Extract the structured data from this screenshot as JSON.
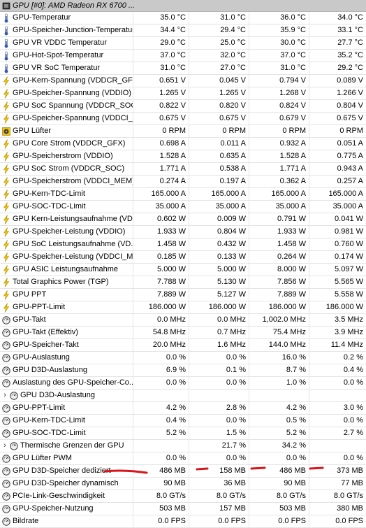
{
  "header": {
    "title": "GPU [#0]: AMD Radeon RX 6700 ..."
  },
  "accent": {
    "annotation_red": "#d9141b",
    "header_bg": "#c9c9c9"
  },
  "rows": [
    {
      "icon": "thermometer-icon",
      "label": "GPU-Temperatur",
      "values": [
        "35.0 °C",
        "31.0 °C",
        "36.0 °C",
        "34.0 °C"
      ]
    },
    {
      "icon": "thermometer-icon",
      "label": "GPU-Speicher-Junction-Temperatur",
      "values": [
        "34.4 °C",
        "29.4 °C",
        "35.9 °C",
        "33.1 °C"
      ]
    },
    {
      "icon": "thermometer-icon",
      "label": "GPU VR VDDC Temperatur",
      "values": [
        "29.0 °C",
        "25.0 °C",
        "30.0 °C",
        "27.7 °C"
      ]
    },
    {
      "icon": "thermometer-icon",
      "label": "GPU-Hot-Spot-Temperatur",
      "values": [
        "37.0 °C",
        "32.0 °C",
        "37.0 °C",
        "35.2 °C"
      ]
    },
    {
      "icon": "thermometer-icon",
      "label": "GPU VR SoC Temperatur",
      "values": [
        "31.0 °C",
        "27.0 °C",
        "31.0 °C",
        "29.2 °C"
      ]
    },
    {
      "icon": "lightning-icon",
      "label": "GPU-Kern-Spannung (VDDCR_GFX)",
      "values": [
        "0.651 V",
        "0.045 V",
        "0.794 V",
        "0.089 V"
      ]
    },
    {
      "icon": "lightning-icon",
      "label": "GPU-Speicher-Spannung (VDDIO)",
      "values": [
        "1.265 V",
        "1.265 V",
        "1.268 V",
        "1.266 V"
      ]
    },
    {
      "icon": "lightning-icon",
      "label": "GPU SoC Spannung (VDDCR_SOC)",
      "values": [
        "0.822 V",
        "0.820 V",
        "0.824 V",
        "0.804 V"
      ]
    },
    {
      "icon": "lightning-icon",
      "label": "GPU-Speicher-Spannung (VDDCI_...",
      "values": [
        "0.675 V",
        "0.675 V",
        "0.679 V",
        "0.675 V"
      ]
    },
    {
      "icon": "fan-icon",
      "label": "GPU Lüfter",
      "values": [
        "0 RPM",
        "0 RPM",
        "0 RPM",
        "0 RPM"
      ]
    },
    {
      "icon": "lightning-icon",
      "label": "GPU Core Strom (VDDCR_GFX)",
      "values": [
        "0.698 A",
        "0.011 A",
        "0.932 A",
        "0.051 A"
      ]
    },
    {
      "icon": "lightning-icon",
      "label": "GPU-Speicherstrom (VDDIO)",
      "values": [
        "1.528 A",
        "0.635 A",
        "1.528 A",
        "0.775 A"
      ]
    },
    {
      "icon": "lightning-icon",
      "label": "GPU SoC Strom (VDDCR_SOC)",
      "values": [
        "1.771 A",
        "0.538 A",
        "1.771 A",
        "0.943 A"
      ]
    },
    {
      "icon": "lightning-icon",
      "label": "GPU-Speicherstrom (VDDCI_MEM)",
      "values": [
        "0.274 A",
        "0.197 A",
        "0.362 A",
        "0.257 A"
      ]
    },
    {
      "icon": "lightning-icon",
      "label": "GPU-Kern-TDC-Limit",
      "values": [
        "165.000 A",
        "165.000 A",
        "165.000 A",
        "165.000 A"
      ]
    },
    {
      "icon": "lightning-icon",
      "label": "GPU-SOC-TDC-Limit",
      "values": [
        "35.000 A",
        "35.000 A",
        "35.000 A",
        "35.000 A"
      ]
    },
    {
      "icon": "lightning-icon",
      "label": "GPU Kern-Leistungsaufnahme (VD...",
      "values": [
        "0.602 W",
        "0.009 W",
        "0.791 W",
        "0.041 W"
      ]
    },
    {
      "icon": "lightning-icon",
      "label": "GPU-Speicher-Leistung (VDDIO)",
      "values": [
        "1.933 W",
        "0.804 W",
        "1.933 W",
        "0.981 W"
      ]
    },
    {
      "icon": "lightning-icon",
      "label": "GPU SoC Leistungsaufnahme (VD...",
      "values": [
        "1.458 W",
        "0.432 W",
        "1.458 W",
        "0.760 W"
      ]
    },
    {
      "icon": "lightning-icon",
      "label": "GPU-Speicher-Leistung (VDDCI_M...",
      "values": [
        "0.185 W",
        "0.133 W",
        "0.264 W",
        "0.174 W"
      ]
    },
    {
      "icon": "lightning-icon",
      "label": "GPU ASIC Leistungsaufnahme",
      "values": [
        "5.000 W",
        "5.000 W",
        "8.000 W",
        "5.097 W"
      ]
    },
    {
      "icon": "lightning-icon",
      "label": "Total Graphics Power (TGP)",
      "values": [
        "7.788 W",
        "5.130 W",
        "7.856 W",
        "5.565 W"
      ]
    },
    {
      "icon": "lightning-icon",
      "label": "GPU PPT",
      "values": [
        "7.889 W",
        "5.127 W",
        "7.889 W",
        "5.558 W"
      ]
    },
    {
      "icon": "lightning-icon",
      "label": "GPU-PPT-Limit",
      "values": [
        "186.000 W",
        "186.000 W",
        "186.000 W",
        "186.000 W"
      ]
    },
    {
      "icon": "gauge-icon",
      "label": "GPU-Takt",
      "values": [
        "0.0 MHz",
        "0.0 MHz",
        "1,002.0 MHz",
        "3.5 MHz"
      ]
    },
    {
      "icon": "gauge-icon",
      "label": "GPU-Takt (Effektiv)",
      "values": [
        "54.8 MHz",
        "0.7 MHz",
        "75.4 MHz",
        "3.9 MHz"
      ]
    },
    {
      "icon": "gauge-icon",
      "label": "GPU-Speicher-Takt",
      "values": [
        "20.0 MHz",
        "1.6 MHz",
        "144.0 MHz",
        "11.4 MHz"
      ]
    },
    {
      "icon": "gauge-icon",
      "label": "GPU-Auslastung",
      "values": [
        "0.0 %",
        "0.0 %",
        "16.0 %",
        "0.2 %"
      ]
    },
    {
      "icon": "gauge-icon",
      "label": "GPU D3D-Auslastung",
      "values": [
        "6.9 %",
        "0.1 %",
        "8.7 %",
        "0.4 %"
      ]
    },
    {
      "icon": "gauge-icon",
      "label": "Auslastung des GPU-Speicher-Co...",
      "values": [
        "0.0 %",
        "0.0 %",
        "1.0 %",
        "0.0 %"
      ]
    },
    {
      "icon": "gauge-icon",
      "label": "GPU D3D-Auslastung",
      "group": true,
      "values": [
        "",
        "",
        "",
        ""
      ]
    },
    {
      "icon": "gauge-icon",
      "label": "GPU-PPT-Limit",
      "values": [
        "4.2 %",
        "2.8 %",
        "4.2 %",
        "3.0 %"
      ]
    },
    {
      "icon": "gauge-icon",
      "label": "GPU-Kern-TDC-Limit",
      "values": [
        "0.4 %",
        "0.0 %",
        "0.5 %",
        "0.0 %"
      ]
    },
    {
      "icon": "gauge-icon",
      "label": "GPU-SOC-TDC-Limit",
      "values": [
        "5.2 %",
        "1.5 %",
        "5.2 %",
        "2.7 %"
      ]
    },
    {
      "icon": "gauge-icon",
      "label": "Thermische Grenzen der GPU",
      "group": true,
      "values": [
        "",
        "21.7 %",
        "34.2 %",
        ""
      ]
    },
    {
      "icon": "gauge-icon",
      "label": "GPU Lüfter PWM",
      "values": [
        "0.0 %",
        "0.0 %",
        "0.0 %",
        "0.0 %"
      ]
    },
    {
      "icon": "gauge-icon",
      "label": "GPU D3D-Speicher dediziert",
      "values": [
        "486 MB",
        "158 MB",
        "486 MB",
        "373 MB"
      ]
    },
    {
      "icon": "gauge-icon",
      "label": "GPU D3D-Speicher dynamisch",
      "values": [
        "90 MB",
        "36 MB",
        "90 MB",
        "77 MB"
      ]
    },
    {
      "icon": "gauge-icon",
      "label": "PCIe-Link-Geschwindigkeit",
      "values": [
        "8.0 GT/s",
        "8.0 GT/s",
        "8.0 GT/s",
        "8.0 GT/s"
      ]
    },
    {
      "icon": "gauge-icon",
      "label": "GPU-Speicher-Nutzung",
      "values": [
        "503 MB",
        "157 MB",
        "503 MB",
        "380 MB"
      ]
    },
    {
      "icon": "gauge-icon",
      "label": "Bildrate",
      "values": [
        "0.0 FPS",
        "0.0 FPS",
        "0.0 FPS",
        "0.0 FPS"
      ]
    }
  ]
}
